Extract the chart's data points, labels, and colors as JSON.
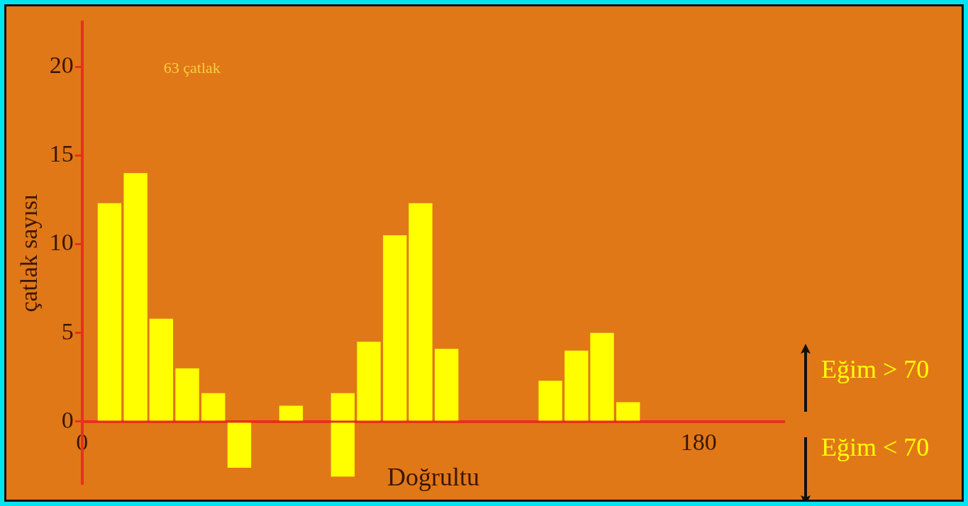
{
  "chart_data": {
    "type": "bar",
    "xlabel": "Doğrultu",
    "ylabel": "çatlak sayısı",
    "annotations": [
      "63 çatlak"
    ],
    "xlim": [
      0,
      205
    ],
    "xticks": [
      0,
      180
    ],
    "ylim": [
      -3.5,
      22.5
    ],
    "yticks": [
      0,
      5,
      10,
      15,
      20
    ],
    "grid": false,
    "legend": "right",
    "series": [
      {
        "name": "Eğim > 70",
        "color": "#ffff00",
        "x": [
          8,
          15.6,
          23.1,
          30.7,
          38.3,
          61.0,
          76.1,
          83.7,
          91.3,
          98.8,
          106.4,
          136.7,
          144.3,
          151.8,
          159.4
        ],
        "values": [
          12.3,
          14.0,
          5.8,
          3.0,
          1.6,
          0.9,
          1.6,
          4.5,
          10.5,
          12.3,
          4.1,
          2.3,
          4.0,
          5.0,
          1.1
        ]
      },
      {
        "name": "Eğim < 70",
        "color": "#ffff00",
        "x": [
          45.9,
          76.1
        ],
        "values": [
          -2.6,
          -3.1
        ]
      }
    ]
  }
}
